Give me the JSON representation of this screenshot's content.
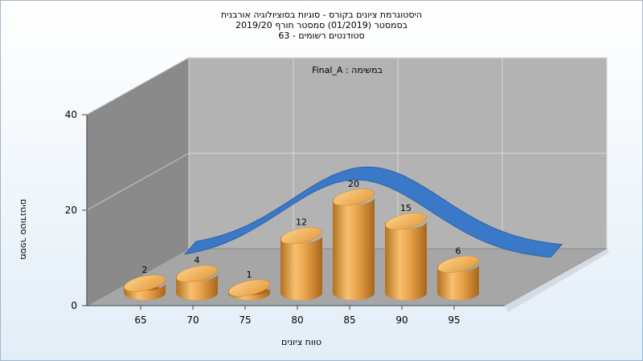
{
  "header": {
    "title_line1": "היסטוגרמת ציונים בקורס - סוגיות בסוציולוגיה אורבנית",
    "title_line2": "בסמסטר  (01/2019)  סמסטר חורף 2019/20",
    "title_line3": "63 - סטודנטים רשומים"
  },
  "chart_data": {
    "type": "bar",
    "series": [
      {
        "name": "Final_A : במשימה",
        "values": [
          2,
          4,
          1,
          12,
          20,
          15,
          6
        ]
      }
    ],
    "categories": [
      "65",
      "70",
      "75",
      "80",
      "85",
      "90",
      "95"
    ],
    "annotation": "Final_A : במשימה",
    "xlabel": "טווח ציונים",
    "ylabel": "מספר סטודנטים",
    "ylim": [
      0,
      40
    ],
    "y_ticks": [
      "0",
      "20",
      "40"
    ],
    "curve": "normal-distribution",
    "colors": {
      "bar": "#e0a046",
      "curve": "#3a78c8",
      "back_wall": "#b3b3b3",
      "side_wall": "#8a8a8a"
    }
  }
}
